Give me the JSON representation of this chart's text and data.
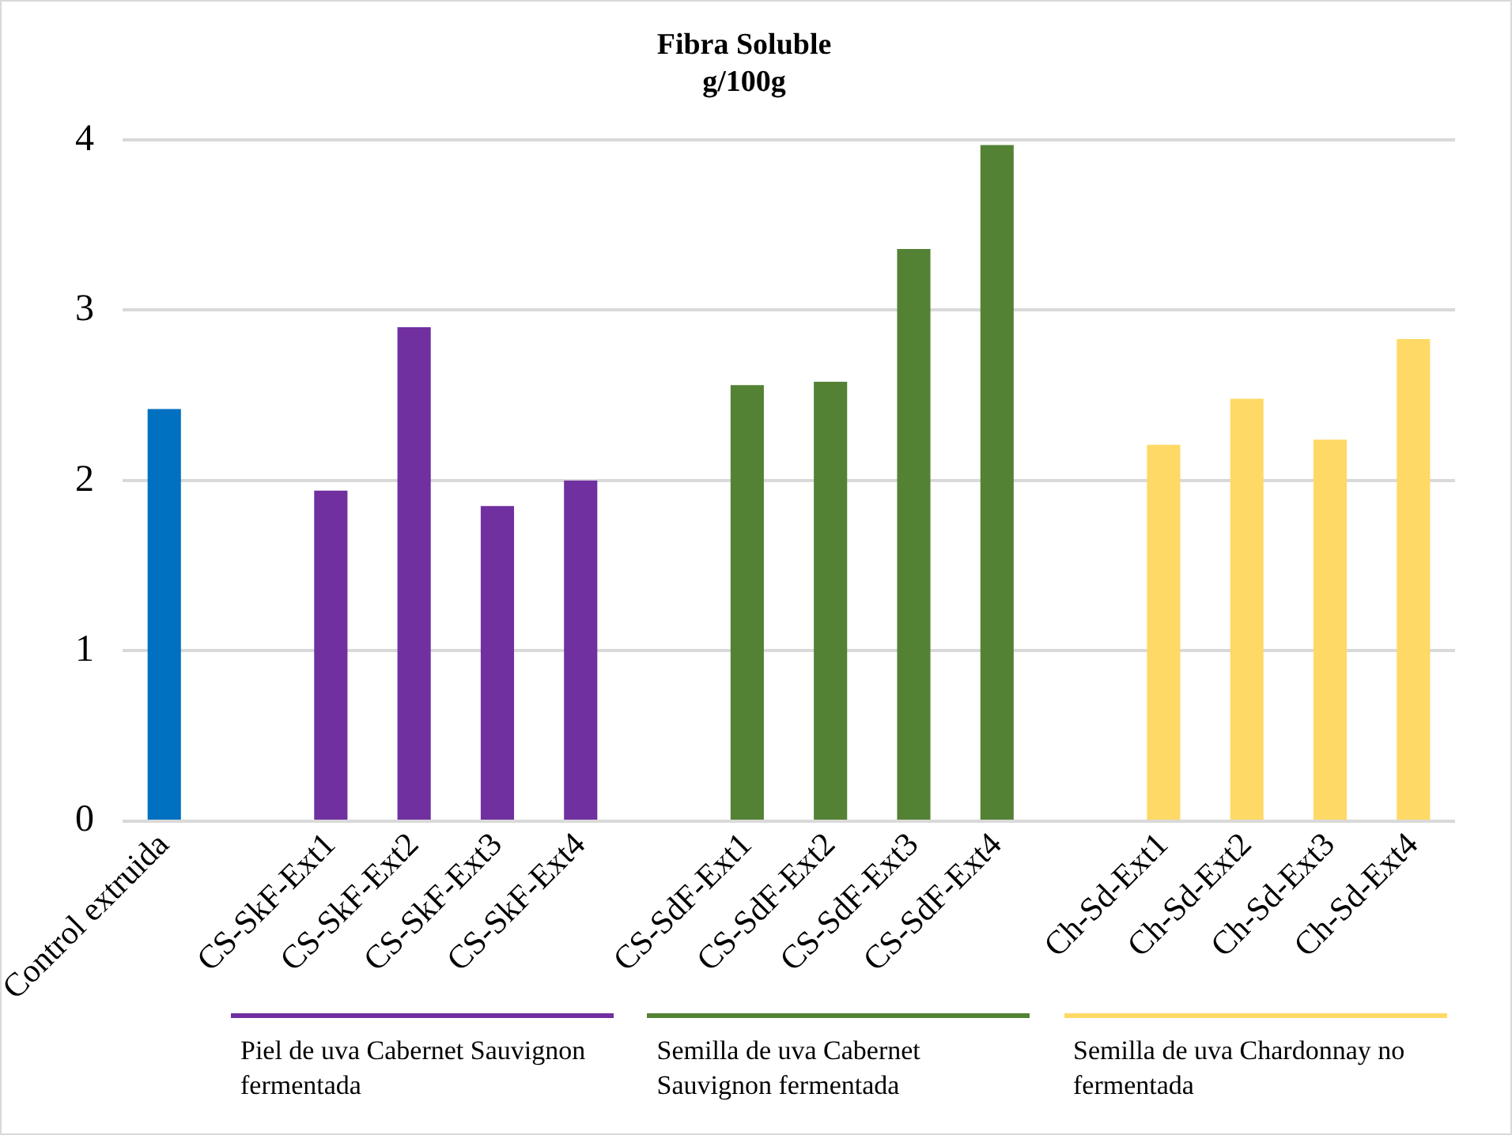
{
  "chart_data": {
    "type": "bar",
    "title": "Fibra Soluble",
    "subtitle": "g/100g",
    "categories": [
      "Control extruida",
      null,
      "CS-SkF-Ext1",
      "CS-SkF-Ext2",
      "CS-SkF-Ext3",
      "CS-SkF-Ext4",
      null,
      "CS-SdF-Ext1",
      "CS-SdF-Ext2",
      "CS-SdF-Ext3",
      "CS-SdF-Ext4",
      null,
      "Ch-Sd-Ext1",
      "Ch-Sd-Ext2",
      "Ch-Sd-Ext3",
      "Ch-Sd-Ext4"
    ],
    "values": [
      2.42,
      null,
      1.94,
      2.9,
      1.85,
      2.0,
      null,
      2.56,
      2.58,
      3.36,
      3.97,
      null,
      2.21,
      2.48,
      2.24,
      2.83
    ],
    "colors": [
      "#0070c0",
      null,
      "#7030a0",
      "#7030a0",
      "#7030a0",
      "#7030a0",
      null,
      "#548235",
      "#548235",
      "#548235",
      "#548235",
      null,
      "#ffd966",
      "#ffd966",
      "#ffd966",
      "#ffd966"
    ],
    "ylim": [
      0,
      4
    ],
    "yticks": [
      0,
      1,
      2,
      3,
      4
    ],
    "grid": "y",
    "legend": false,
    "annotations": [
      "Piel de uva Cabernet Sauvignon fermentada",
      "Semilla de uva Cabernet Sauvignon fermentada",
      "Semilla de uva Chardonnay no fermentada"
    ]
  }
}
